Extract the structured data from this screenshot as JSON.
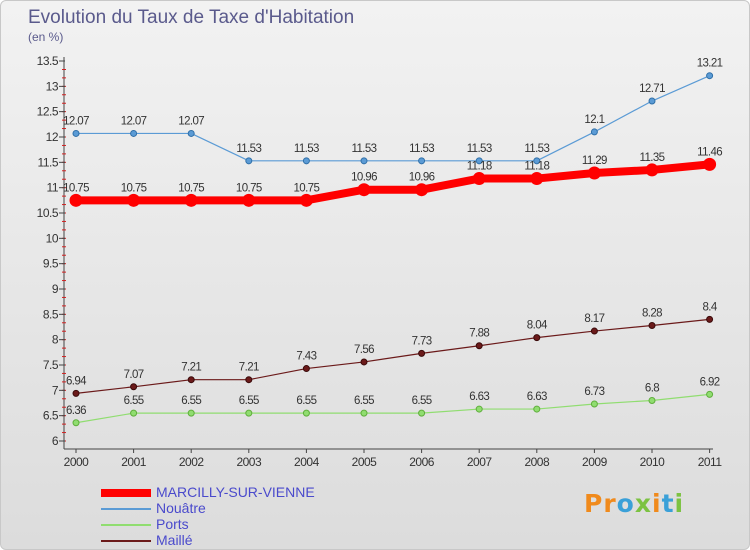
{
  "title": "Evolution du Taux de Taxe d'Habitation",
  "subtitle": "(en %)",
  "logo": {
    "text": "Proxiti",
    "letters": [
      {
        "char": "P",
        "color": "#f08a1c"
      },
      {
        "char": "r",
        "color": "#f08a1c"
      },
      {
        "char": "o",
        "color": "#3aa0d8"
      },
      {
        "char": "x",
        "color": "#7cc242"
      },
      {
        "char": "i",
        "color": "#f08a1c"
      },
      {
        "char": "t",
        "color": "#3aa0d8"
      },
      {
        "char": "i",
        "color": "#7cc242"
      }
    ]
  },
  "chart_data": {
    "type": "line",
    "title": "Evolution du Taux de Taxe d'Habitation",
    "ylabel": "(en %)",
    "xlabel": "",
    "x": [
      "2000",
      "2001",
      "2002",
      "2003",
      "2004",
      "2005",
      "2006",
      "2007",
      "2008",
      "2009",
      "2010",
      "2011"
    ],
    "ylim": [
      6,
      13.5
    ],
    "yticks": [
      6,
      6.5,
      7,
      7.5,
      8,
      8.5,
      9,
      9.5,
      10,
      10.5,
      11,
      11.5,
      12,
      12.5,
      13,
      13.5
    ],
    "grid": false,
    "legend_position": "bottom-left",
    "series": [
      {
        "name": "MARCILLY-SUR-VIENNE",
        "color": "#ff0000",
        "values": [
          10.75,
          10.75,
          10.75,
          10.75,
          10.75,
          10.96,
          10.96,
          11.18,
          11.18,
          11.29,
          11.35,
          11.46
        ]
      },
      {
        "name": "Nouâtre",
        "color": "#5b9bd5",
        "values": [
          12.07,
          12.07,
          12.07,
          11.53,
          11.53,
          11.53,
          11.53,
          11.53,
          11.53,
          12.1,
          12.71,
          13.21
        ]
      },
      {
        "name": "Ports",
        "color": "#90dd70",
        "values": [
          6.36,
          6.55,
          6.55,
          6.55,
          6.55,
          6.55,
          6.55,
          6.63,
          6.63,
          6.73,
          6.8,
          6.92
        ]
      },
      {
        "name": "Maillé",
        "color": "#6b1a1a",
        "values": [
          6.94,
          7.07,
          7.21,
          7.21,
          7.43,
          7.56,
          7.73,
          7.88,
          8.04,
          8.17,
          8.28,
          8.4
        ]
      }
    ]
  }
}
